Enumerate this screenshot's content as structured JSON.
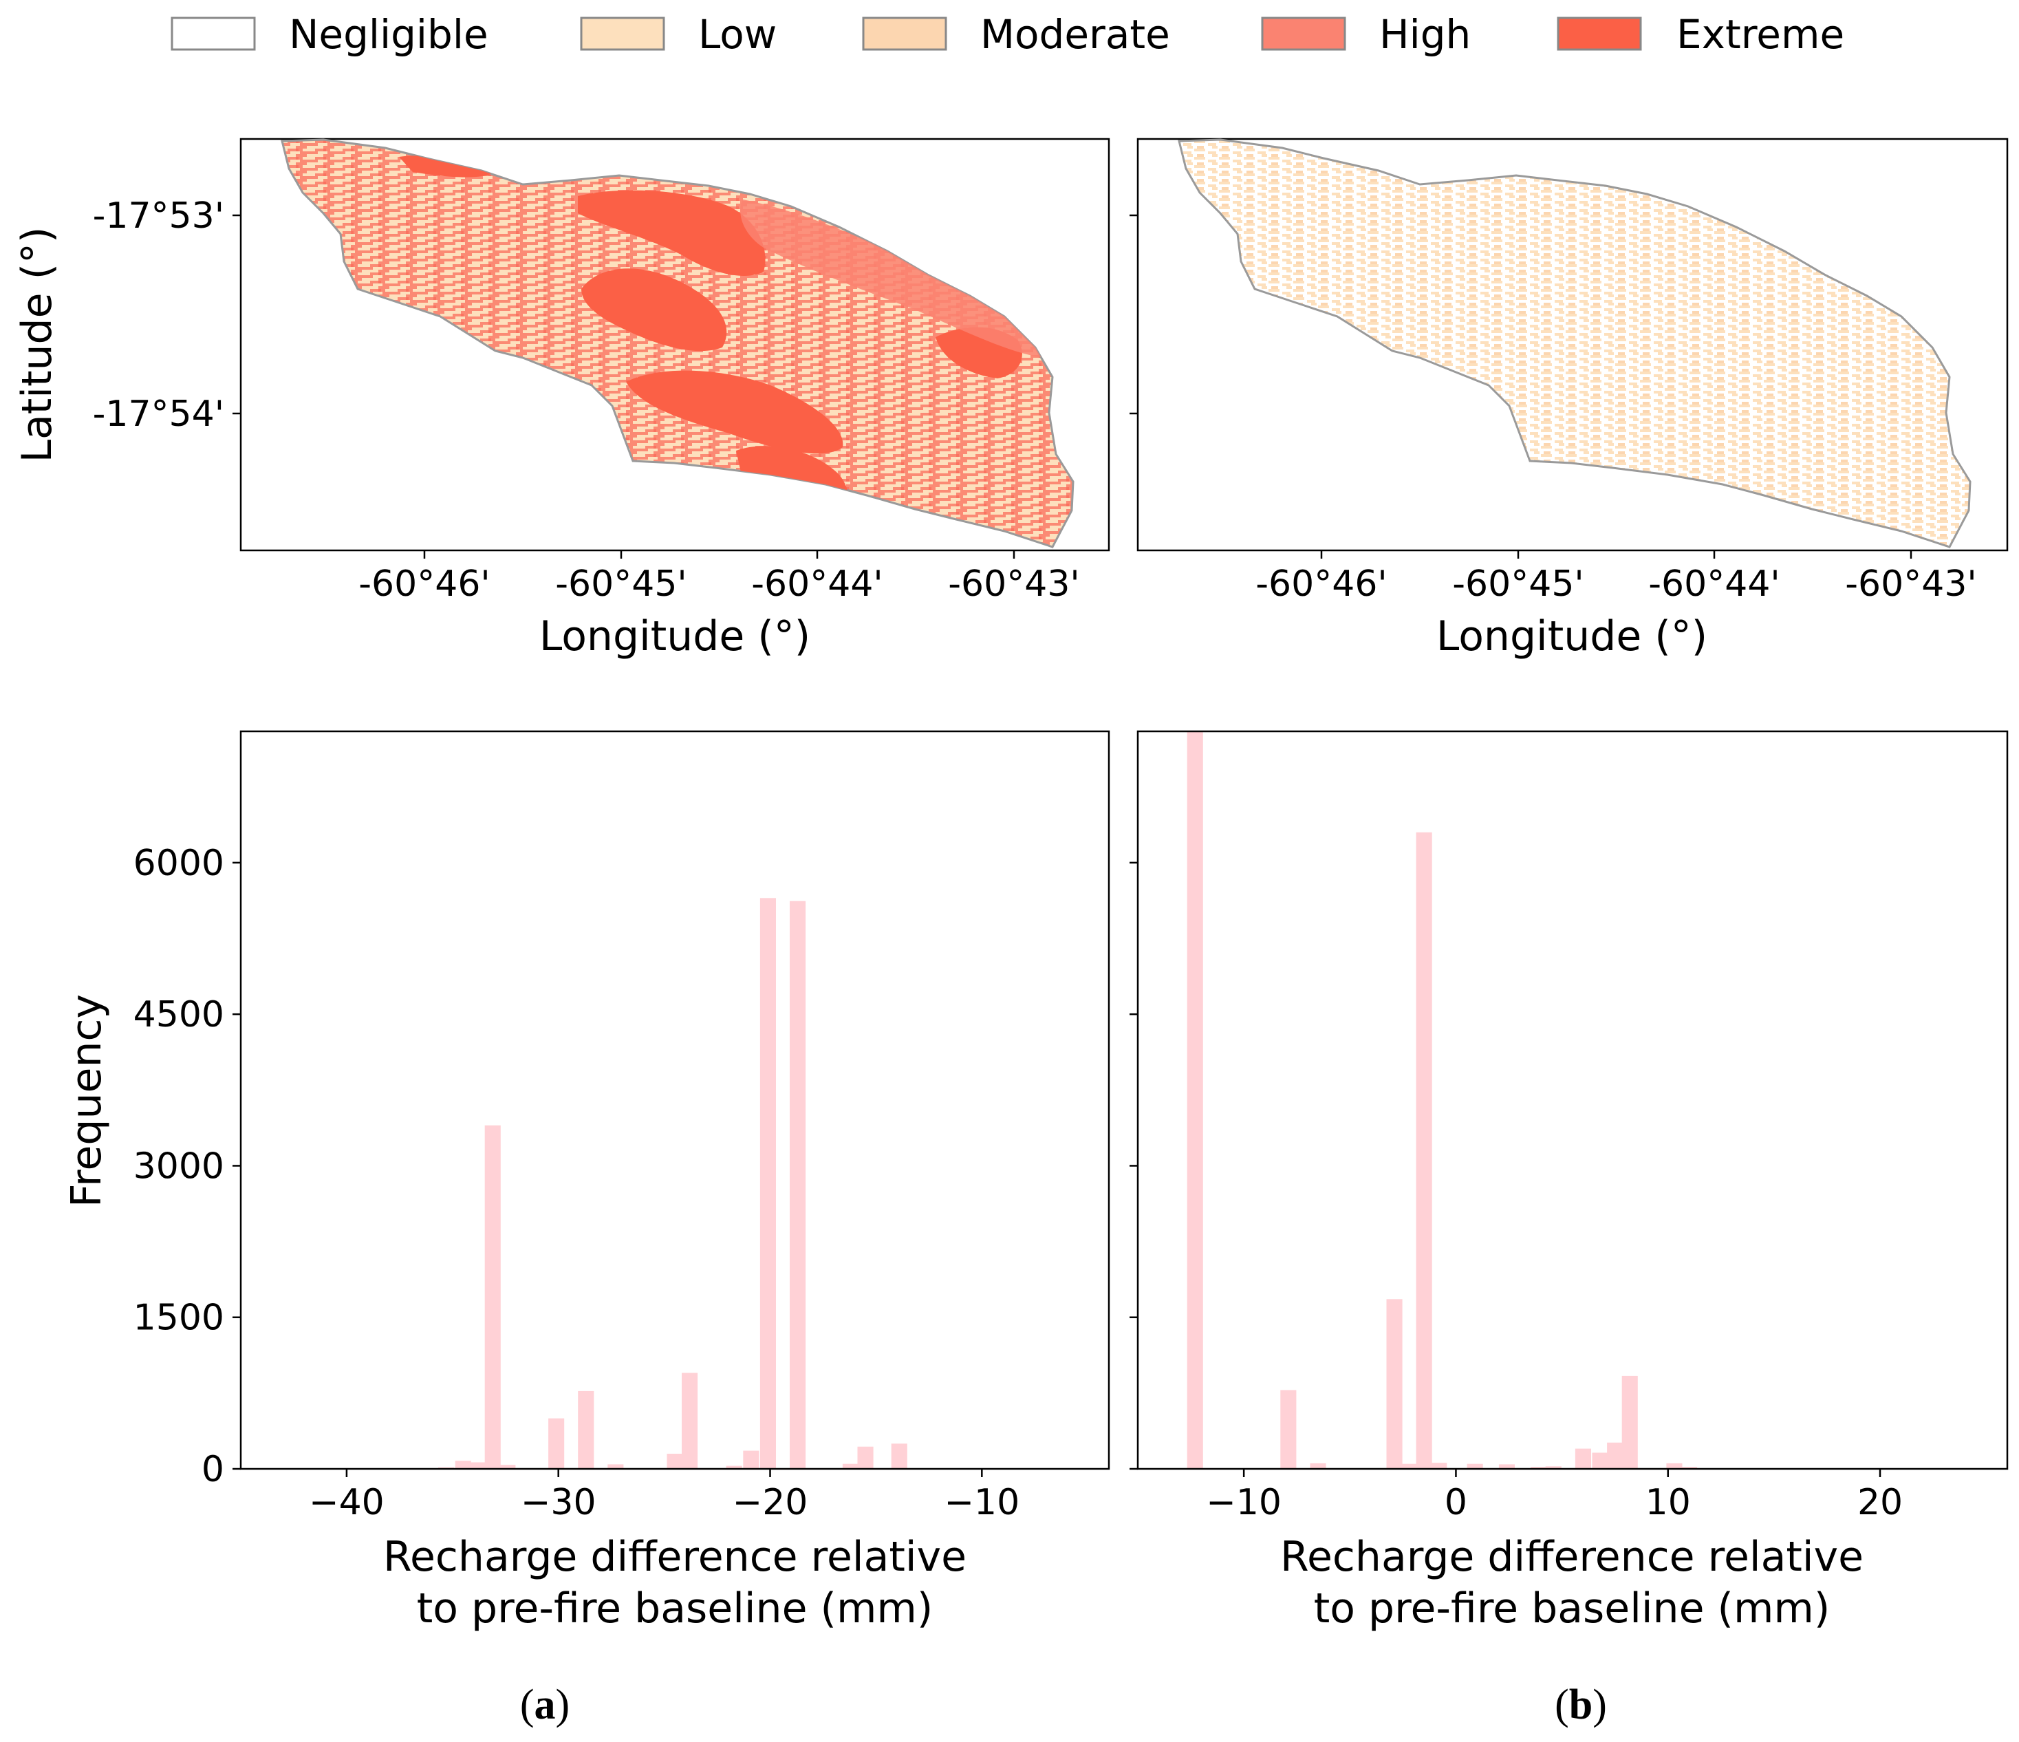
{
  "legend": {
    "items": [
      {
        "label": "Negligible",
        "color": "#ffffff"
      },
      {
        "label": "Low",
        "color": "#fde0bd"
      },
      {
        "label": "Moderate",
        "color": "#fcd6b0"
      },
      {
        "label": "High",
        "color": "#fa8371"
      },
      {
        "label": "Extreme",
        "color": "#fb6046"
      }
    ]
  },
  "maps": {
    "lon_ticks": [
      "-60°46'",
      "-60°45'",
      "-60°44'",
      "-60°43'"
    ],
    "lat_ticks": [
      "-17°53'",
      "-17°54'"
    ],
    "xlabel": "Longitude (°)",
    "ylabel": "Latitude (°)"
  },
  "chart_data": [
    {
      "type": "bar",
      "panel": "a",
      "title": "",
      "xlabel_line1": "Recharge difference relative",
      "xlabel_line2": "to pre-fire baseline (mm)",
      "ylabel": "Frequency",
      "xlim": [
        -45,
        -4
      ],
      "ylim": [
        0,
        7300
      ],
      "xticks": [
        -40,
        -30,
        -20,
        -10
      ],
      "xtick_labels": [
        "−40",
        "−30",
        "−20",
        "−10"
      ],
      "yticks": [
        0,
        1500,
        3000,
        4500,
        6000
      ],
      "ytick_labels": [
        "0",
        "1500",
        "3000",
        "4500",
        "6000"
      ],
      "bar_width": 0.75,
      "bars": [
        {
          "x": -35.3,
          "value": 15
        },
        {
          "x": -34.5,
          "value": 80
        },
        {
          "x": -33.8,
          "value": 65
        },
        {
          "x": -33.1,
          "value": 3400
        },
        {
          "x": -32.4,
          "value": 40
        },
        {
          "x": -30.1,
          "value": 500
        },
        {
          "x": -28.7,
          "value": 770
        },
        {
          "x": -27.3,
          "value": 45
        },
        {
          "x": -24.5,
          "value": 150
        },
        {
          "x": -23.8,
          "value": 950
        },
        {
          "x": -21.7,
          "value": 30
        },
        {
          "x": -20.9,
          "value": 180
        },
        {
          "x": -20.1,
          "value": 5650
        },
        {
          "x": -18.7,
          "value": 5620
        },
        {
          "x": -16.2,
          "value": 50
        },
        {
          "x": -15.5,
          "value": 220
        },
        {
          "x": -13.9,
          "value": 250
        }
      ]
    },
    {
      "type": "bar",
      "panel": "b",
      "title": "",
      "xlabel_line1": "Recharge difference relative",
      "xlabel_line2": "to pre-fire baseline (mm)",
      "ylabel": "",
      "xlim": [
        -15,
        26
      ],
      "ylim": [
        0,
        7300
      ],
      "xticks": [
        -10,
        0,
        10,
        20
      ],
      "xtick_labels": [
        "−10",
        "0",
        "10",
        "20"
      ],
      "yticks": [
        0,
        1500,
        3000,
        4500,
        6000
      ],
      "ytick_labels": [
        "",
        "",
        "",
        "",
        ""
      ],
      "bar_width": 0.75,
      "bars": [
        {
          "x": -12.3,
          "value": 7300
        },
        {
          "x": -7.9,
          "value": 780
        },
        {
          "x": -6.5,
          "value": 55
        },
        {
          "x": -2.9,
          "value": 1680
        },
        {
          "x": -2.2,
          "value": 50
        },
        {
          "x": -1.5,
          "value": 6300
        },
        {
          "x": -0.8,
          "value": 60
        },
        {
          "x": 0.9,
          "value": 50
        },
        {
          "x": 2.4,
          "value": 45
        },
        {
          "x": 3.9,
          "value": 20
        },
        {
          "x": 4.6,
          "value": 25
        },
        {
          "x": 6.0,
          "value": 200
        },
        {
          "x": 6.8,
          "value": 160
        },
        {
          "x": 7.5,
          "value": 260
        },
        {
          "x": 8.2,
          "value": 920
        },
        {
          "x": 10.3,
          "value": 55
        },
        {
          "x": 11.0,
          "value": 20
        }
      ],
      "bar_color": "#ffd1d6"
    }
  ],
  "captions": {
    "a": {
      "open": "(",
      "letter": "a",
      "close": ")"
    },
    "b": {
      "open": "(",
      "letter": "b",
      "close": ")"
    }
  }
}
